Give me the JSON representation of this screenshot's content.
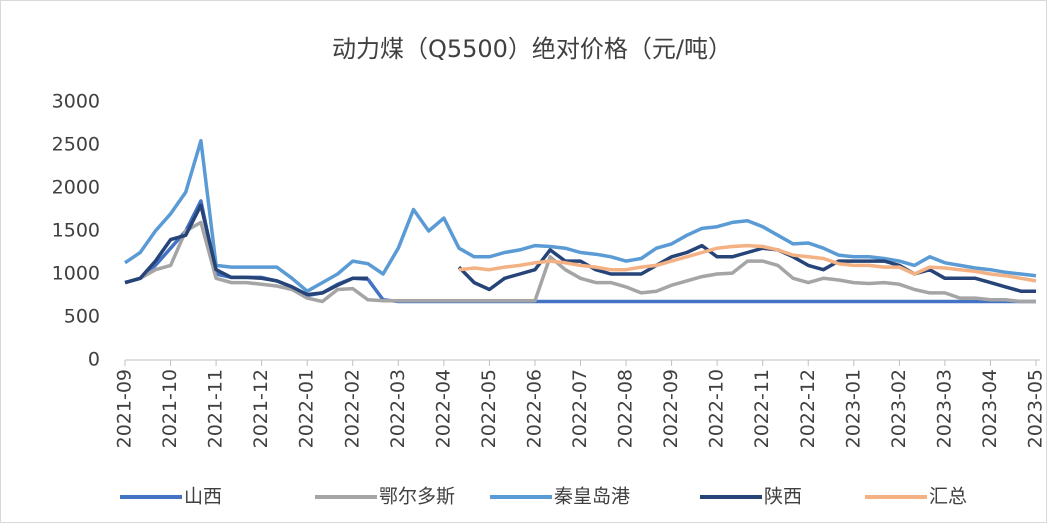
{
  "chart_data": {
    "type": "line",
    "title": "动力煤（Q5500）绝对价格（元/吨）",
    "categories": [
      "2021-09",
      null,
      null,
      "2021-10",
      null,
      null,
      "2021-11",
      null,
      null,
      "2021-12",
      null,
      null,
      "2022-01",
      null,
      null,
      "2022-02",
      null,
      null,
      "2022-03",
      null,
      null,
      "2022-04",
      null,
      null,
      "2022-05",
      null,
      null,
      "2022-06",
      null,
      null,
      "2022-07",
      null,
      null,
      "2022-08",
      null,
      null,
      "2022-09",
      null,
      null,
      "2022-10",
      null,
      null,
      "2022-11",
      null,
      null,
      "2022-12",
      null,
      null,
      "2023-01",
      null,
      null,
      "2023-02",
      null,
      null,
      "2023-03",
      null,
      null,
      "2023-04",
      null,
      null,
      "2023-05"
    ],
    "ylim": [
      0,
      3000
    ],
    "yticks": [
      0,
      500,
      1000,
      1500,
      2000,
      2500,
      3000
    ],
    "legend": "bottom",
    "series": [
      {
        "name": "山西",
        "color": "#4472c4",
        "values": [
          900,
          950,
          1100,
          1300,
          1500,
          1850,
          1000,
          960,
          960,
          960,
          920,
          850,
          750,
          780,
          880,
          950,
          940,
          700,
          680,
          680,
          680,
          680,
          680,
          680,
          680,
          680,
          680,
          680,
          680,
          680,
          680,
          680,
          680,
          680,
          680,
          680,
          680,
          680,
          680,
          680,
          680,
          680,
          680,
          680,
          680,
          680,
          680,
          680,
          680,
          680,
          680,
          680,
          680,
          680,
          680,
          680,
          680,
          680,
          680,
          680,
          680
        ]
      },
      {
        "name": "鄂尔多斯",
        "color": "#a5a5a5",
        "values": [
          900,
          950,
          1050,
          1100,
          1500,
          1600,
          950,
          900,
          900,
          880,
          860,
          820,
          720,
          680,
          820,
          830,
          700,
          690,
          690,
          690,
          690,
          690,
          690,
          690,
          690,
          690,
          690,
          690,
          1200,
          1050,
          950,
          900,
          900,
          850,
          780,
          800,
          870,
          920,
          970,
          1000,
          1010,
          1150,
          1150,
          1100,
          950,
          900,
          950,
          930,
          900,
          890,
          900,
          880,
          820,
          780,
          780,
          720,
          720,
          700,
          700,
          680,
          680
        ]
      },
      {
        "name": "秦皇岛港",
        "color": "#5b9bd5",
        "values": [
          1130,
          1250,
          1500,
          1700,
          1950,
          2550,
          1100,
          1080,
          1080,
          1080,
          1080,
          950,
          800,
          900,
          1000,
          1150,
          1120,
          1000,
          1300,
          1750,
          1500,
          1650,
          1300,
          1200,
          1200,
          1250,
          1280,
          1330,
          1320,
          1300,
          1250,
          1230,
          1200,
          1150,
          1180,
          1300,
          1350,
          1450,
          1530,
          1550,
          1600,
          1620,
          1550,
          1450,
          1350,
          1360,
          1300,
          1220,
          1200,
          1200,
          1180,
          1150,
          1100,
          1200,
          1130,
          1100,
          1070,
          1050,
          1020,
          1000,
          980
        ]
      },
      {
        "name": "陕西",
        "color": "#264478",
        "values": [
          900,
          950,
          1150,
          1400,
          1450,
          1800,
          1050,
          960,
          960,
          950,
          920,
          850,
          760,
          780,
          870,
          950,
          950,
          null,
          null,
          null,
          null,
          null,
          1080,
          900,
          820,
          950,
          1000,
          1050,
          1280,
          1150,
          1150,
          1050,
          1000,
          1000,
          1000,
          1100,
          1200,
          1250,
          1330,
          1200,
          1200,
          1250,
          1300,
          1280,
          1200,
          1100,
          1050,
          1150,
          1150,
          1150,
          1150,
          1100,
          1000,
          1050,
          950,
          950,
          950,
          900,
          850,
          800,
          800
        ]
      },
      {
        "name": "汇总",
        "color": "#f4b183",
        "values": [
          null,
          null,
          null,
          null,
          null,
          null,
          null,
          null,
          null,
          null,
          null,
          null,
          null,
          null,
          null,
          null,
          null,
          null,
          null,
          null,
          null,
          null,
          1050,
          1070,
          1050,
          1080,
          1100,
          1130,
          1150,
          1130,
          1100,
          1080,
          1050,
          1050,
          1080,
          1100,
          1150,
          1200,
          1250,
          1300,
          1320,
          1330,
          1320,
          1280,
          1220,
          1200,
          1180,
          1120,
          1100,
          1100,
          1080,
          1080,
          1000,
          1080,
          1070,
          1050,
          1030,
          1000,
          980,
          950,
          920
        ]
      }
    ]
  }
}
